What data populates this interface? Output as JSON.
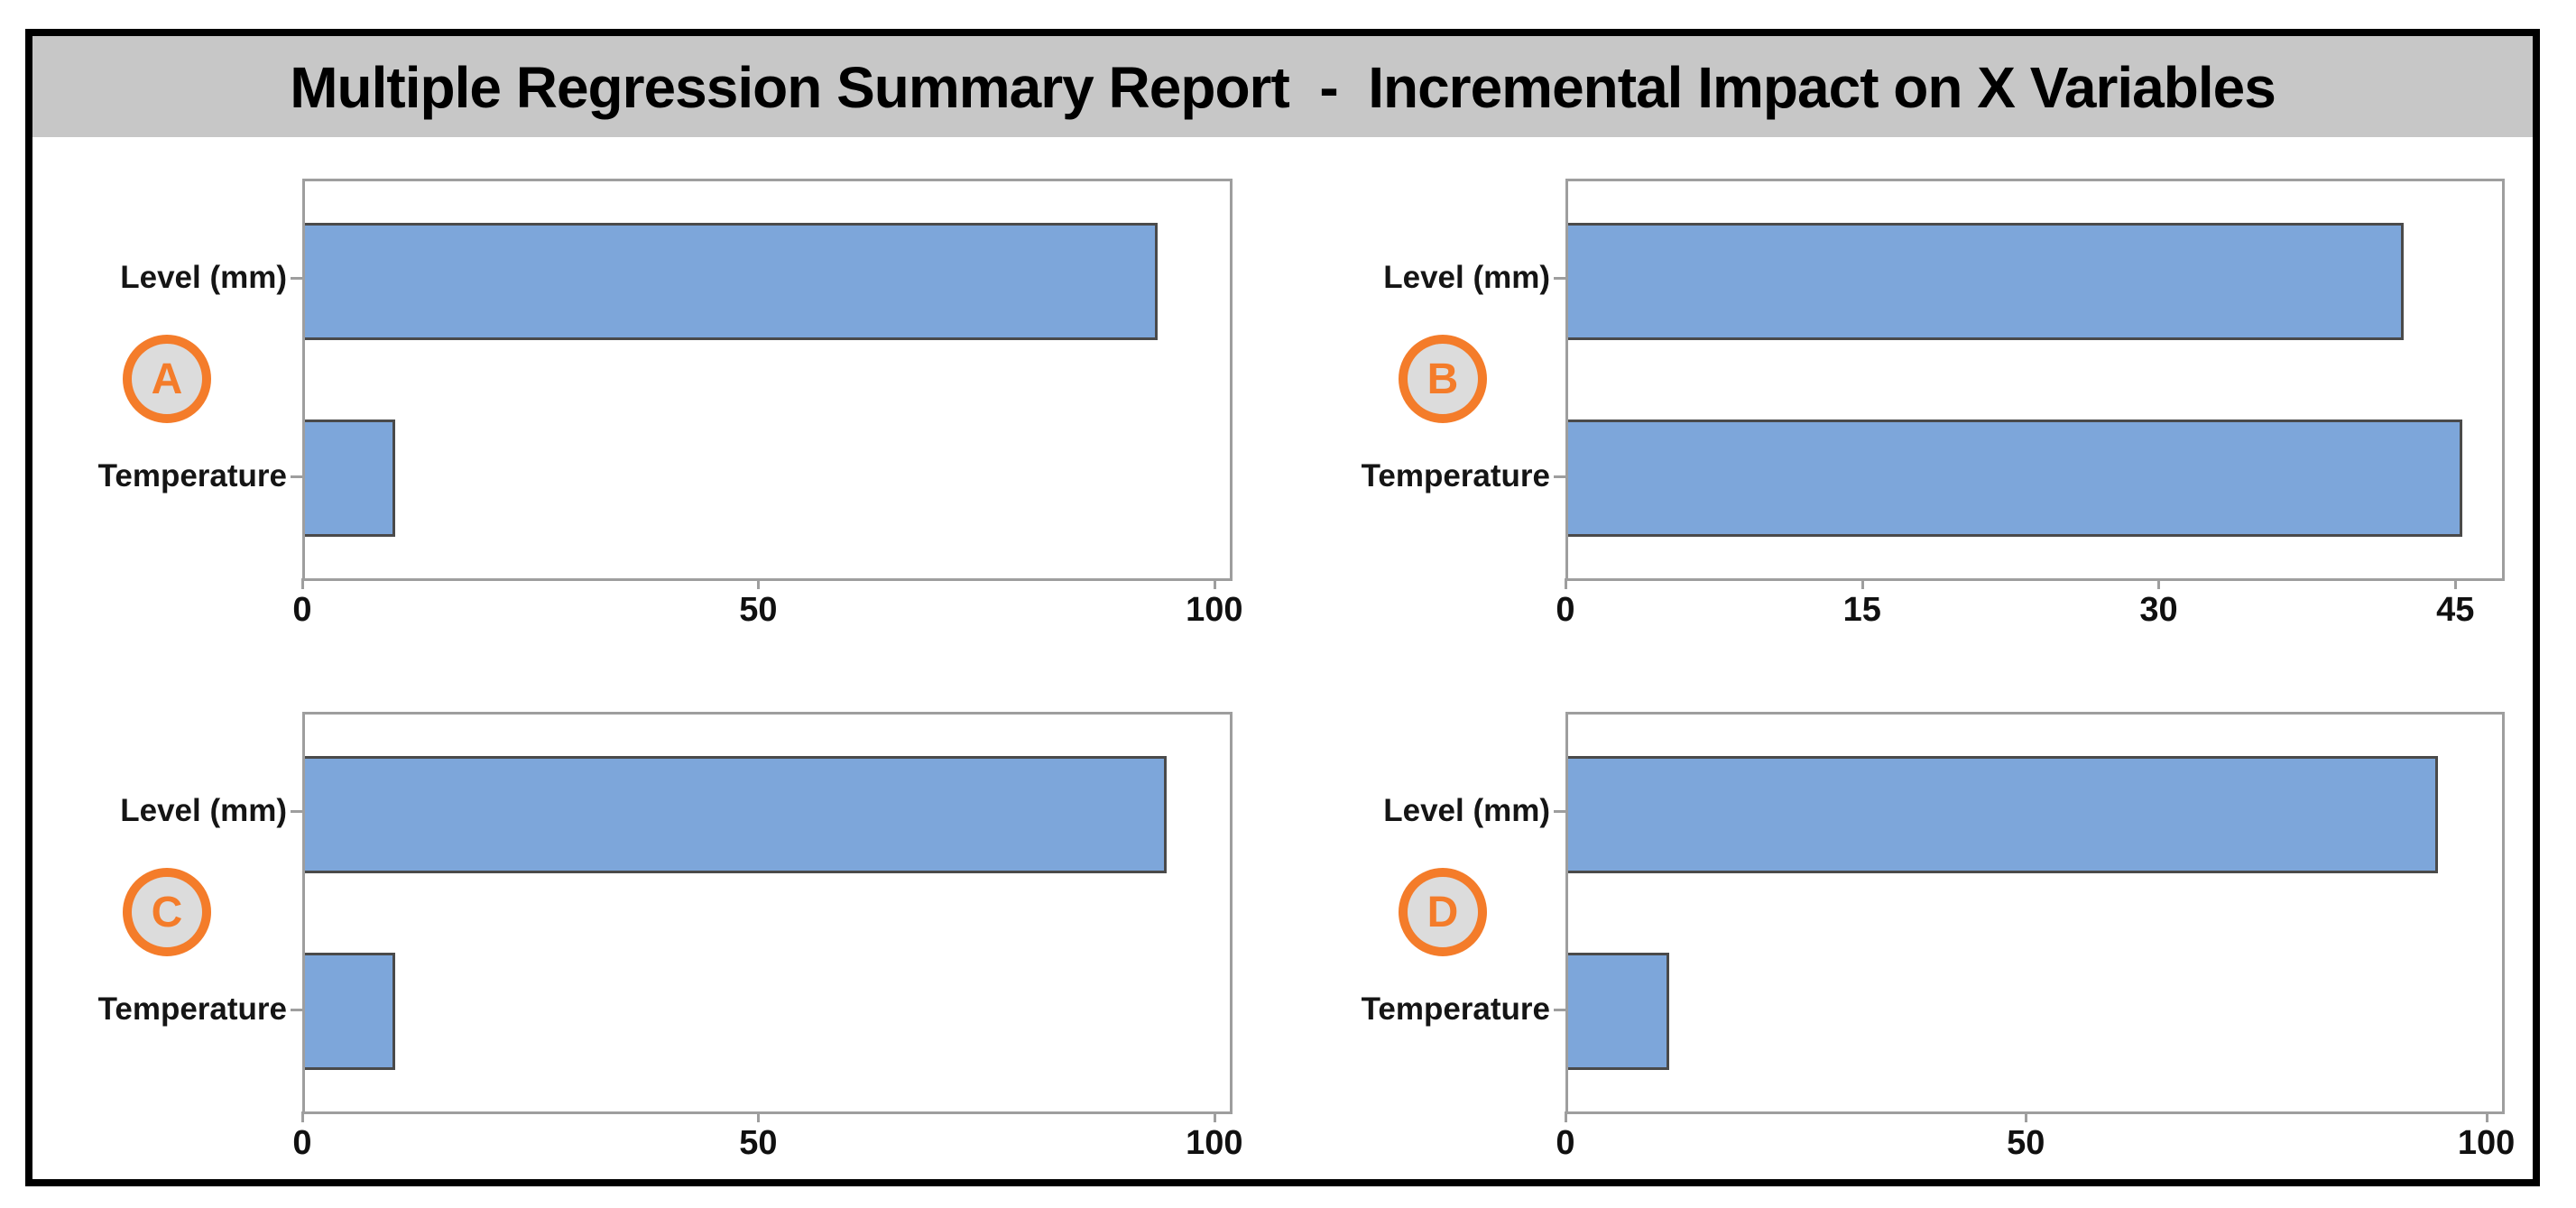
{
  "header": {
    "title": "Multiple Regression Summary Report  -  Incremental Impact on X Variables"
  },
  "chart_data": [
    {
      "type": "bar",
      "panel_label": "A",
      "orientation": "horizontal",
      "categories": [
        "Level (mm)",
        "Temperature"
      ],
      "values": [
        94,
        10
      ],
      "x_ticks": [
        0,
        50,
        100
      ],
      "xlim": [
        0,
        102
      ],
      "grid": false,
      "legend": false
    },
    {
      "type": "bar",
      "panel_label": "B",
      "orientation": "horizontal",
      "categories": [
        "Level (mm)",
        "Temperature"
      ],
      "values": [
        42.5,
        45.5
      ],
      "x_ticks": [
        0,
        15,
        30,
        45
      ],
      "xlim": [
        0,
        47.5
      ],
      "grid": false,
      "legend": false
    },
    {
      "type": "bar",
      "panel_label": "C",
      "orientation": "horizontal",
      "categories": [
        "Level (mm)",
        "Temperature"
      ],
      "values": [
        95,
        10
      ],
      "x_ticks": [
        0,
        50,
        100
      ],
      "xlim": [
        0,
        102
      ],
      "grid": false,
      "legend": false
    },
    {
      "type": "bar",
      "panel_label": "D",
      "orientation": "horizontal",
      "categories": [
        "Level (mm)",
        "Temperature"
      ],
      "values": [
        95,
        11
      ],
      "x_ticks": [
        0,
        50,
        100
      ],
      "xlim": [
        0,
        102
      ],
      "grid": false,
      "legend": false
    }
  ],
  "style": {
    "banner_bg": "#c7c7c7",
    "bar_fill": "#7da6da",
    "bar_border": "#4a4a4a",
    "plot_border": "#9e9e9e",
    "badge_orange": "#f47c2a",
    "badge_fill": "#dcdcdc",
    "frame_border": "#000000"
  }
}
